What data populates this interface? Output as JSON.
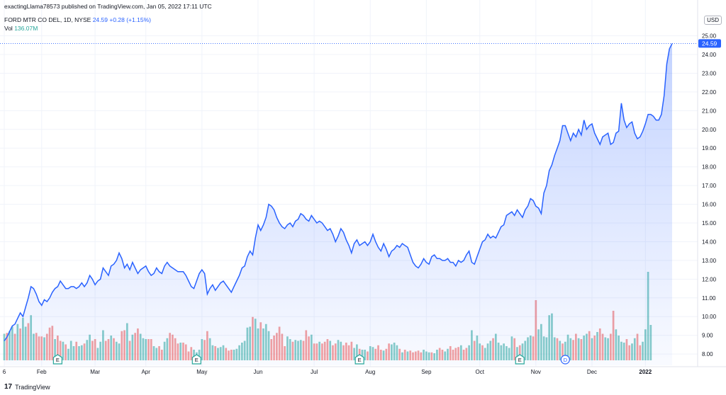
{
  "header": {
    "publisher": "exactingLlama78573 published on TradingView.com, Jan 05, 2022 17:11 UTC"
  },
  "legend": {
    "symbol": "FORD MTR CO DEL, 1D, NYSE",
    "last": "24.59",
    "change": "+0.28 (+1.15%)",
    "vol_label": "Vol",
    "vol_value": "136.07M"
  },
  "axis": {
    "currency": "USD",
    "price_badge": "24.59"
  },
  "brand": {
    "logo": "17",
    "name": "TradingView"
  },
  "colors": {
    "line": "#2962ff",
    "area_top": "#2962ff",
    "vol_up": "#26a69a",
    "vol_down": "#ef5350",
    "grid": "#f0f3fa"
  },
  "chart_data": {
    "type": "area",
    "y_ticks": [
      "8.00",
      "9.00",
      "10.00",
      "11.00",
      "12.00",
      "13.00",
      "14.00",
      "15.00",
      "16.00",
      "17.00",
      "18.00",
      "19.00",
      "20.00",
      "21.00",
      "22.00",
      "23.00",
      "24.00",
      "25.00"
    ],
    "x_ticks": [
      "6",
      "Feb",
      "Mar",
      "Apr",
      "May",
      "Jun",
      "Jul",
      "Aug",
      "Sep",
      "Oct",
      "Nov",
      "Dec",
      "2022"
    ],
    "ylim": [
      7.4,
      25.4
    ],
    "price": [
      8.7,
      8.9,
      9.2,
      9.5,
      9.6,
      9.9,
      10.2,
      10.0,
      10.5,
      11.0,
      11.6,
      11.5,
      11.2,
      10.8,
      10.6,
      10.9,
      10.8,
      11.0,
      11.3,
      11.5,
      11.6,
      11.9,
      11.7,
      11.5,
      11.5,
      11.6,
      11.6,
      11.5,
      11.6,
      11.8,
      11.6,
      11.8,
      12.2,
      12.0,
      11.7,
      11.9,
      12.0,
      12.6,
      12.4,
      12.2,
      12.7,
      12.8,
      13.0,
      13.4,
      13.1,
      12.6,
      12.8,
      12.5,
      12.9,
      12.6,
      12.3,
      12.5,
      12.6,
      12.7,
      12.4,
      12.2,
      12.3,
      12.6,
      12.4,
      12.3,
      12.7,
      12.9,
      12.7,
      12.6,
      12.5,
      12.4,
      12.4,
      12.4,
      12.2,
      11.9,
      11.6,
      11.5,
      11.9,
      12.3,
      12.5,
      12.3,
      11.2,
      11.5,
      11.7,
      11.4,
      11.6,
      11.8,
      11.9,
      11.7,
      11.5,
      11.3,
      11.6,
      11.9,
      12.2,
      12.6,
      12.7,
      13.2,
      13.5,
      13.3,
      14.2,
      14.9,
      14.6,
      14.9,
      15.3,
      16.0,
      15.9,
      15.7,
      15.3,
      15.0,
      14.8,
      14.7,
      14.9,
      15.0,
      14.8,
      15.1,
      15.2,
      15.5,
      15.4,
      15.2,
      15.1,
      15.4,
      15.2,
      15.0,
      15.1,
      15.0,
      14.8,
      14.6,
      14.7,
      14.4,
      14.0,
      14.3,
      14.7,
      14.5,
      14.1,
      13.8,
      13.4,
      13.9,
      14.1,
      13.8,
      13.9,
      14.0,
      13.8,
      14.0,
      14.4,
      14.0,
      13.7,
      13.5,
      13.9,
      13.6,
      13.2,
      13.5,
      13.6,
      13.8,
      13.7,
      13.9,
      13.8,
      13.7,
      13.3,
      12.9,
      12.7,
      12.6,
      12.8,
      13.1,
      12.9,
      12.8,
      13.2,
      13.3,
      13.1,
      13.1,
      13.0,
      13.0,
      13.1,
      12.9,
      12.9,
      12.7,
      13.0,
      12.9,
      13.0,
      13.3,
      13.5,
      12.9,
      12.8,
      13.2,
      13.6,
      14.0,
      14.1,
      14.4,
      14.2,
      14.3,
      14.2,
      14.5,
      14.8,
      14.9,
      15.4,
      15.5,
      15.6,
      15.4,
      15.7,
      15.5,
      15.3,
      15.7,
      15.9,
      16.3,
      16.2,
      15.9,
      15.8,
      15.5,
      16.6,
      17.0,
      17.8,
      18.1,
      18.6,
      19.0,
      19.4,
      20.2,
      20.2,
      19.8,
      19.4,
      19.8,
      19.6,
      20.0,
      19.7,
      20.5,
      20.0,
      20.2,
      20.3,
      19.8,
      19.5,
      19.2,
      19.6,
      19.7,
      19.8,
      19.2,
      19.3,
      19.8,
      19.9,
      21.4,
      20.5,
      20.1,
      20.3,
      20.4,
      19.8,
      19.5,
      19.6,
      19.9,
      20.3,
      20.8,
      20.8,
      20.7,
      20.5,
      20.5,
      20.8,
      21.8,
      23.5,
      24.3,
      24.59
    ],
    "volume_ratio": [
      0.3,
      0.31,
      0.33,
      0.38,
      0.3,
      0.41,
      0.36,
      0.48,
      0.38,
      0.42,
      0.51,
      0.3,
      0.31,
      0.27,
      0.27,
      0.26,
      0.3,
      0.37,
      0.39,
      0.24,
      0.28,
      0.22,
      0.21,
      0.18,
      0.13,
      0.22,
      0.16,
      0.21,
      0.16,
      0.17,
      0.19,
      0.23,
      0.29,
      0.22,
      0.24,
      0.14,
      0.21,
      0.34,
      0.22,
      0.24,
      0.28,
      0.25,
      0.21,
      0.19,
      0.33,
      0.34,
      0.42,
      0.22,
      0.29,
      0.31,
      0.36,
      0.3,
      0.25,
      0.24,
      0.24,
      0.24,
      0.16,
      0.14,
      0.16,
      0.12,
      0.21,
      0.25,
      0.31,
      0.29,
      0.25,
      0.19,
      0.2,
      0.2,
      0.18,
      0.1,
      0.15,
      0.12,
      0.09,
      0.12,
      0.24,
      0.23,
      0.33,
      0.25,
      0.17,
      0.16,
      0.14,
      0.15,
      0.17,
      0.14,
      0.11,
      0.12,
      0.12,
      0.13,
      0.17,
      0.2,
      0.22,
      0.37,
      0.38,
      0.49,
      0.47,
      0.36,
      0.43,
      0.36,
      0.41,
      0.33,
      0.24,
      0.28,
      0.31,
      0.38,
      0.3,
      0.16,
      0.27,
      0.24,
      0.21,
      0.23,
      0.22,
      0.23,
      0.22,
      0.34,
      0.27,
      0.29,
      0.19,
      0.19,
      0.21,
      0.19,
      0.21,
      0.24,
      0.22,
      0.17,
      0.19,
      0.23,
      0.21,
      0.17,
      0.2,
      0.17,
      0.21,
      0.14,
      0.18,
      0.13,
      0.12,
      0.12,
      0.1,
      0.16,
      0.15,
      0.13,
      0.17,
      0.12,
      0.11,
      0.13,
      0.19,
      0.18,
      0.2,
      0.17,
      0.13,
      0.09,
      0.12,
      0.1,
      0.11,
      0.09,
      0.1,
      0.11,
      0.09,
      0.12,
      0.1,
      0.09,
      0.09,
      0.08,
      0.12,
      0.14,
      0.12,
      0.1,
      0.13,
      0.16,
      0.12,
      0.14,
      0.15,
      0.17,
      0.12,
      0.14,
      0.17,
      0.34,
      0.22,
      0.28,
      0.19,
      0.17,
      0.14,
      0.19,
      0.22,
      0.25,
      0.3,
      0.2,
      0.17,
      0.19,
      0.16,
      0.14,
      0.27,
      0.25,
      0.15,
      0.17,
      0.19,
      0.22,
      0.26,
      0.28,
      0.27,
      0.68,
      0.35,
      0.41,
      0.27,
      0.26,
      0.51,
      0.53,
      0.26,
      0.25,
      0.22,
      0.19,
      0.21,
      0.29,
      0.25,
      0.23,
      0.3,
      0.25,
      0.24,
      0.28,
      0.3,
      0.33,
      0.25,
      0.28,
      0.32,
      0.36,
      0.3,
      0.26,
      0.25,
      0.3,
      0.56,
      0.35,
      0.28,
      0.21,
      0.2,
      0.24,
      0.17,
      0.19,
      0.25,
      0.3,
      0.17,
      0.21,
      0.35,
      1.0,
      0.4
    ],
    "volume_up": [
      1,
      0,
      1,
      1,
      0,
      1,
      0,
      1,
      1,
      0,
      1,
      1,
      0,
      0,
      0,
      1,
      0,
      0,
      0,
      1,
      0,
      0,
      1,
      0,
      1,
      1,
      1,
      0,
      1,
      1,
      0,
      1,
      1,
      0,
      0,
      1,
      1,
      1,
      0,
      0,
      1,
      0,
      1,
      1,
      0,
      0,
      1,
      0,
      1,
      0,
      0,
      1,
      1,
      1,
      0,
      0,
      1,
      1,
      0,
      0,
      1,
      1,
      0,
      0,
      0,
      0,
      1,
      0,
      0,
      0,
      0,
      1,
      1,
      1,
      1,
      0,
      0,
      1,
      1,
      0,
      1,
      1,
      1,
      0,
      0,
      0,
      1,
      1,
      1,
      1,
      1,
      1,
      1,
      0,
      1,
      1,
      0,
      1,
      1,
      1,
      0,
      0,
      0,
      0,
      0,
      0,
      1,
      1,
      0,
      1,
      1,
      1,
      0,
      0,
      0,
      1,
      0,
      0,
      1,
      0,
      0,
      0,
      1,
      0,
      0,
      1,
      1,
      0,
      0,
      0,
      0,
      1,
      1,
      0,
      1,
      1,
      0,
      1,
      1,
      0,
      0,
      0,
      1,
      0,
      0,
      1,
      1,
      1,
      0,
      1,
      0,
      1,
      0,
      0,
      0,
      0,
      0,
      1,
      1,
      1,
      0,
      1,
      1,
      0,
      0,
      1,
      1,
      0,
      0,
      0,
      0,
      1,
      0,
      0,
      1,
      1,
      0,
      1,
      1,
      0,
      1,
      1,
      1,
      0,
      1,
      1,
      1,
      1,
      1,
      1,
      1,
      0,
      1,
      0,
      1,
      1,
      1,
      1,
      0,
      0,
      1,
      1,
      1,
      1,
      1,
      1,
      1,
      0,
      1,
      0,
      1,
      1,
      1,
      0,
      0,
      1,
      0,
      1,
      1,
      0,
      1,
      0,
      1,
      0,
      0,
      1,
      1,
      0,
      0,
      1,
      1,
      1,
      1,
      0,
      0,
      1,
      1,
      0,
      0,
      1,
      1,
      1,
      1,
      0,
      1,
      1,
      1,
      1
    ],
    "events": [
      {
        "label": "E",
        "index": 20
      },
      {
        "label": "E",
        "index": 72
      },
      {
        "label": "E",
        "index": 133
      },
      {
        "label": "E",
        "index": 193
      },
      {
        "label": "D",
        "index": 210
      }
    ]
  }
}
